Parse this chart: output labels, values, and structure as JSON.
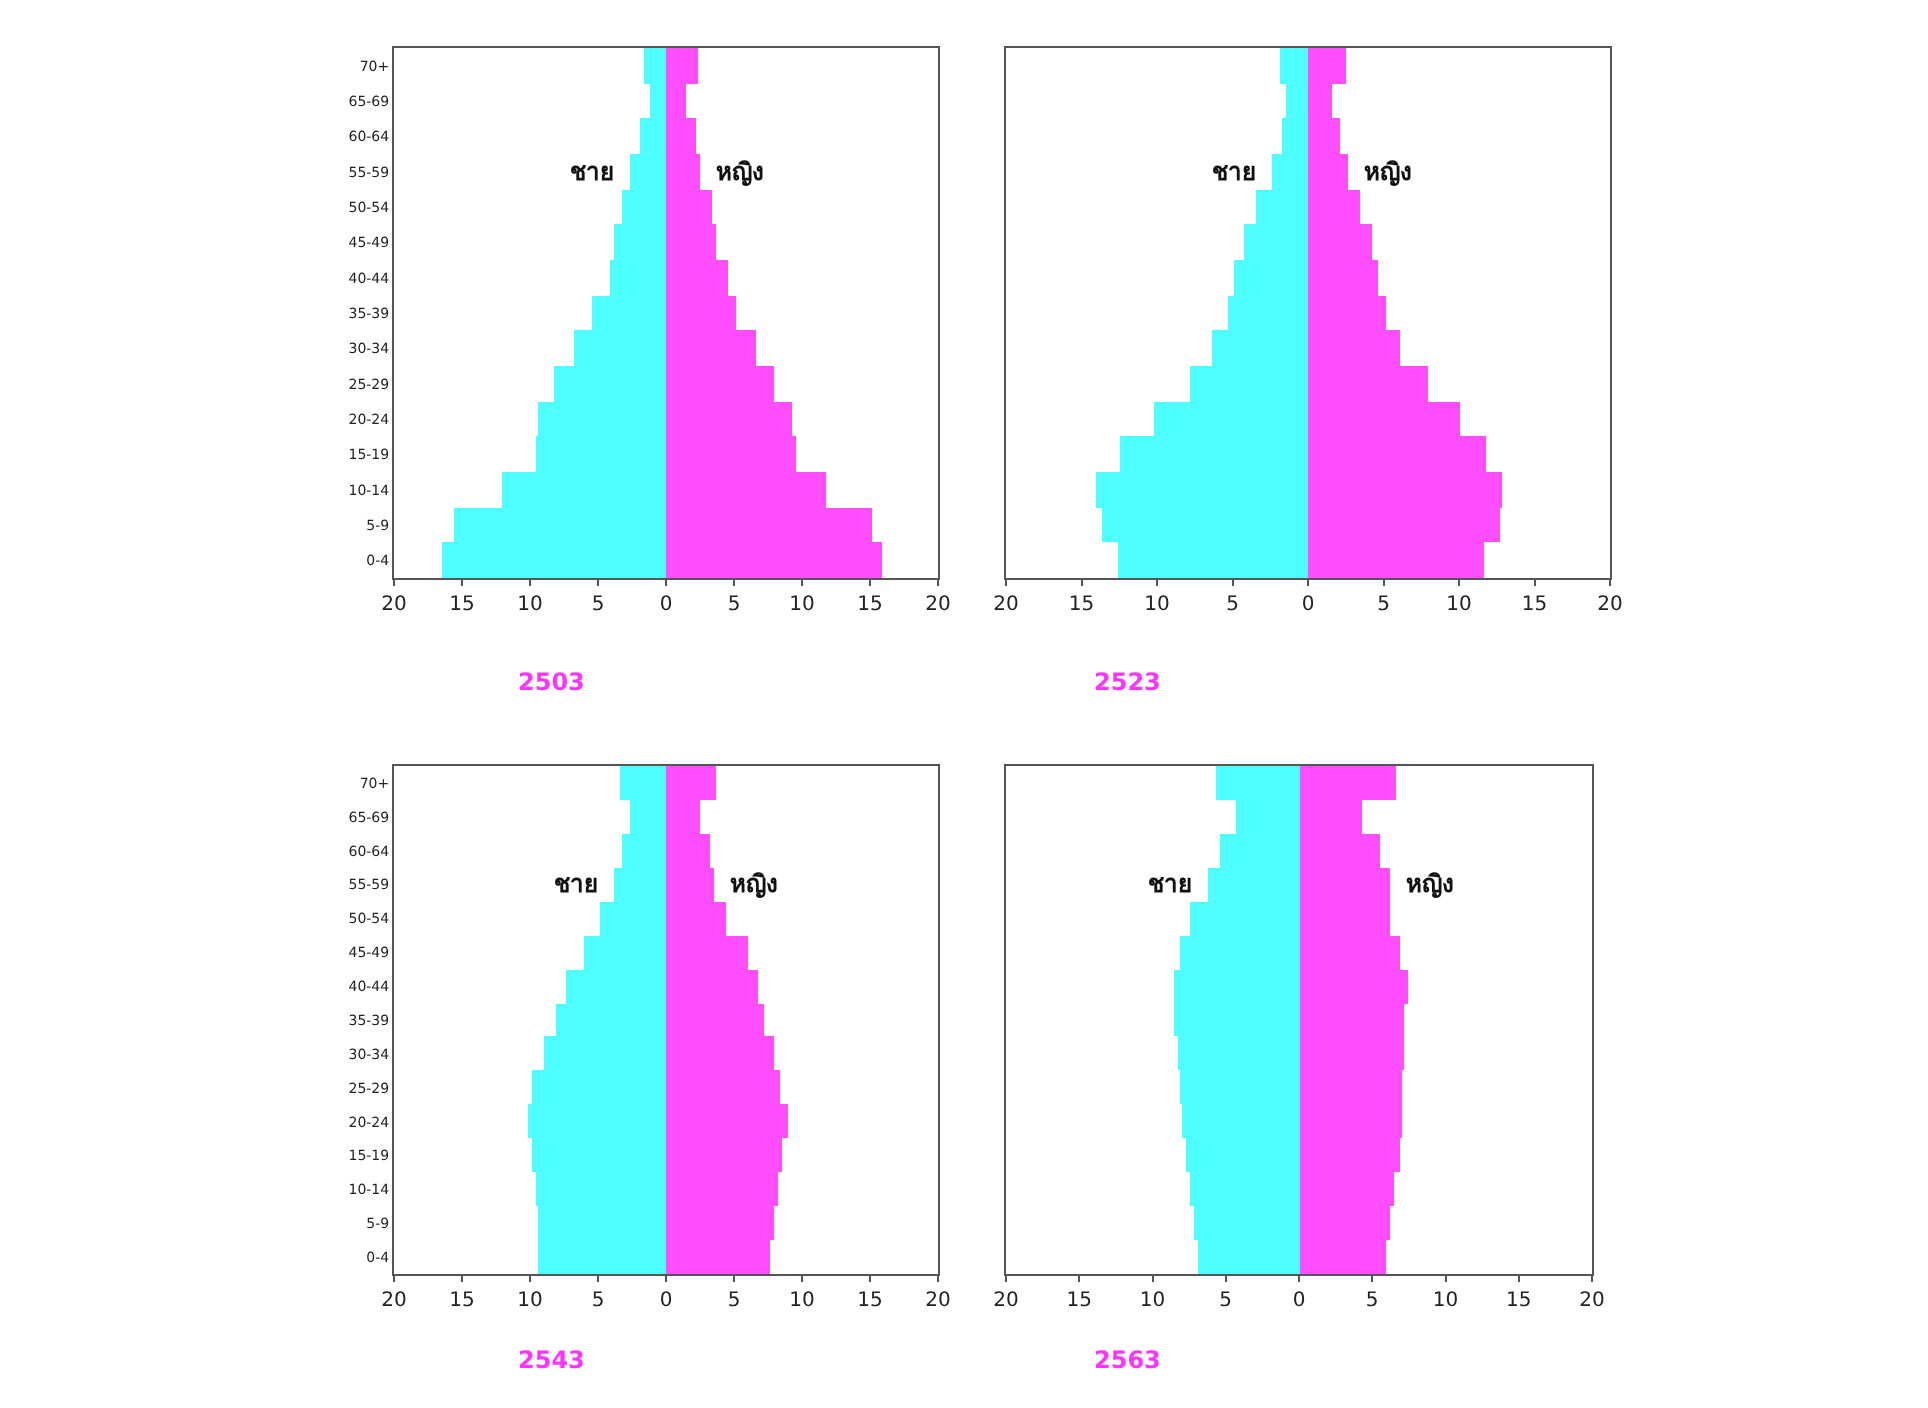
{
  "chart_data": [
    {
      "type": "bar",
      "orientation": "horizontal",
      "xlabel": "2503",
      "categories": [
        "70+",
        "65-69",
        "60-64",
        "55-59",
        "50-54",
        "45-49",
        "40-44",
        "35-39",
        "30-34",
        "25-29",
        "20-24",
        "15-19",
        "10-14",
        "5-9",
        "0-4"
      ],
      "series": [
        {
          "name": "ชาย",
          "color": "#4dffff",
          "values": [
            -1.6,
            -1.2,
            -1.9,
            -2.7,
            -3.2,
            -3.8,
            -4.1,
            -5.4,
            -6.8,
            -8.2,
            -9.4,
            -9.6,
            -12.0,
            -15.6,
            -16.4
          ]
        },
        {
          "name": "หญิง",
          "color": "#ff4dff",
          "values": [
            2.3,
            1.4,
            2.2,
            2.5,
            3.4,
            3.7,
            4.5,
            5.2,
            6.6,
            8.0,
            9.2,
            9.5,
            11.7,
            15.1,
            15.9
          ]
        }
      ],
      "xlim": [
        -20,
        20
      ],
      "xticks": [
        {
          "value": -20,
          "label": "20"
        },
        {
          "value": -15,
          "label": "15"
        },
        {
          "value": -10,
          "label": "10"
        },
        {
          "value": -5,
          "label": "5"
        },
        0,
        5,
        10,
        15,
        20
      ],
      "legend": false,
      "stacked": true
    },
    {
      "type": "bar",
      "orientation": "horizontal",
      "xlabel": "2523",
      "categories": [
        null,
        null,
        null,
        null,
        null,
        null,
        null,
        null,
        null,
        null,
        null,
        null,
        null,
        null,
        null
      ],
      "series": [
        {
          "name": "ชาย",
          "color": "#4dffff",
          "values": [
            -1.8,
            -1.4,
            -1.7,
            -2.4,
            -3.5,
            -4.3,
            -4.9,
            -5.3,
            -6.4,
            -7.8,
            -10.2,
            -12.5,
            -14.0,
            -13.7,
            -12.6
          ]
        },
        {
          "name": "หญิง",
          "color": "#ff4dff",
          "values": [
            2.5,
            1.6,
            2.1,
            2.6,
            3.5,
            4.3,
            4.6,
            5.2,
            6.1,
            7.9,
            10.0,
            11.8,
            12.9,
            12.7,
            11.7
          ]
        }
      ],
      "xlim": [
        -20,
        20
      ],
      "xticks": [
        {
          "value": -20,
          "label": "20"
        },
        {
          "value": -15,
          "label": "15"
        },
        {
          "value": -10,
          "label": "10"
        },
        {
          "value": -5,
          "label": "5"
        },
        0,
        5,
        10,
        15,
        20
      ],
      "legend": false,
      "tick_labels": "x",
      "stacked": true
    },
    {
      "type": "bar",
      "orientation": "horizontal",
      "xlabel": "2543",
      "categories": [
        "70+",
        "65-69",
        "60-64",
        "55-59",
        "50-54",
        "45-49",
        "40-44",
        "35-39",
        "30-34",
        "25-29",
        "20-24",
        "15-19",
        "10-14",
        "5-9",
        "0-4"
      ],
      "series": [
        {
          "name": "ชาย",
          "color": "#4dffff",
          "values": [
            -3.4,
            -2.6,
            -3.3,
            -3.8,
            -4.9,
            -6.1,
            -7.4,
            -8.1,
            -8.9,
            -9.9,
            -10.1,
            -9.8,
            -9.5,
            -9.4,
            -9.4
          ]
        },
        {
          "name": "หญิง",
          "color": "#ff4dff",
          "values": [
            3.7,
            2.5,
            3.3,
            3.5,
            4.4,
            6.1,
            6.8,
            7.2,
            8.0,
            8.4,
            8.9,
            8.5,
            8.3,
            8.0,
            7.7
          ]
        }
      ],
      "xlim": [
        -20,
        20
      ],
      "xticks": [
        {
          "value": -20,
          "label": "20"
        },
        {
          "value": -15,
          "label": "15"
        },
        {
          "value": -10,
          "label": "10"
        },
        {
          "value": -5,
          "label": "5"
        },
        0,
        5,
        10,
        15,
        20
      ],
      "legend": false,
      "stacked": true
    },
    {
      "type": "bar",
      "orientation": "horizontal",
      "xlabel": "2563",
      "categories": [
        null,
        null,
        null,
        null,
        null,
        null,
        null,
        null,
        null,
        null,
        null,
        null,
        null,
        null,
        null
      ],
      "series": [
        {
          "name": "ชาย",
          "color": "#4dffff",
          "values": [
            -5.6,
            -4.3,
            -5.4,
            -6.2,
            -7.4,
            -8.1,
            -8.5,
            -8.5,
            -8.3,
            -8.1,
            -8.0,
            -7.7,
            -7.4,
            -7.1,
            -6.9
          ]
        },
        {
          "name": "หญิง",
          "color": "#ff4dff",
          "values": [
            6.6,
            4.3,
            5.5,
            6.2,
            6.2,
            6.9,
            7.4,
            7.2,
            7.1,
            7.0,
            7.0,
            6.9,
            6.5,
            6.2,
            5.9
          ]
        }
      ],
      "xlim": [
        -20,
        20
      ],
      "xticks": [
        {
          "value": -20,
          "label": "20"
        },
        {
          "value": -15,
          "label": "15"
        },
        {
          "value": -10,
          "label": "10"
        },
        {
          "value": -5,
          "label": "5"
        },
        0,
        5,
        10,
        15,
        20
      ],
      "legend": false,
      "tick_labels": "x",
      "stacked": true
    }
  ]
}
